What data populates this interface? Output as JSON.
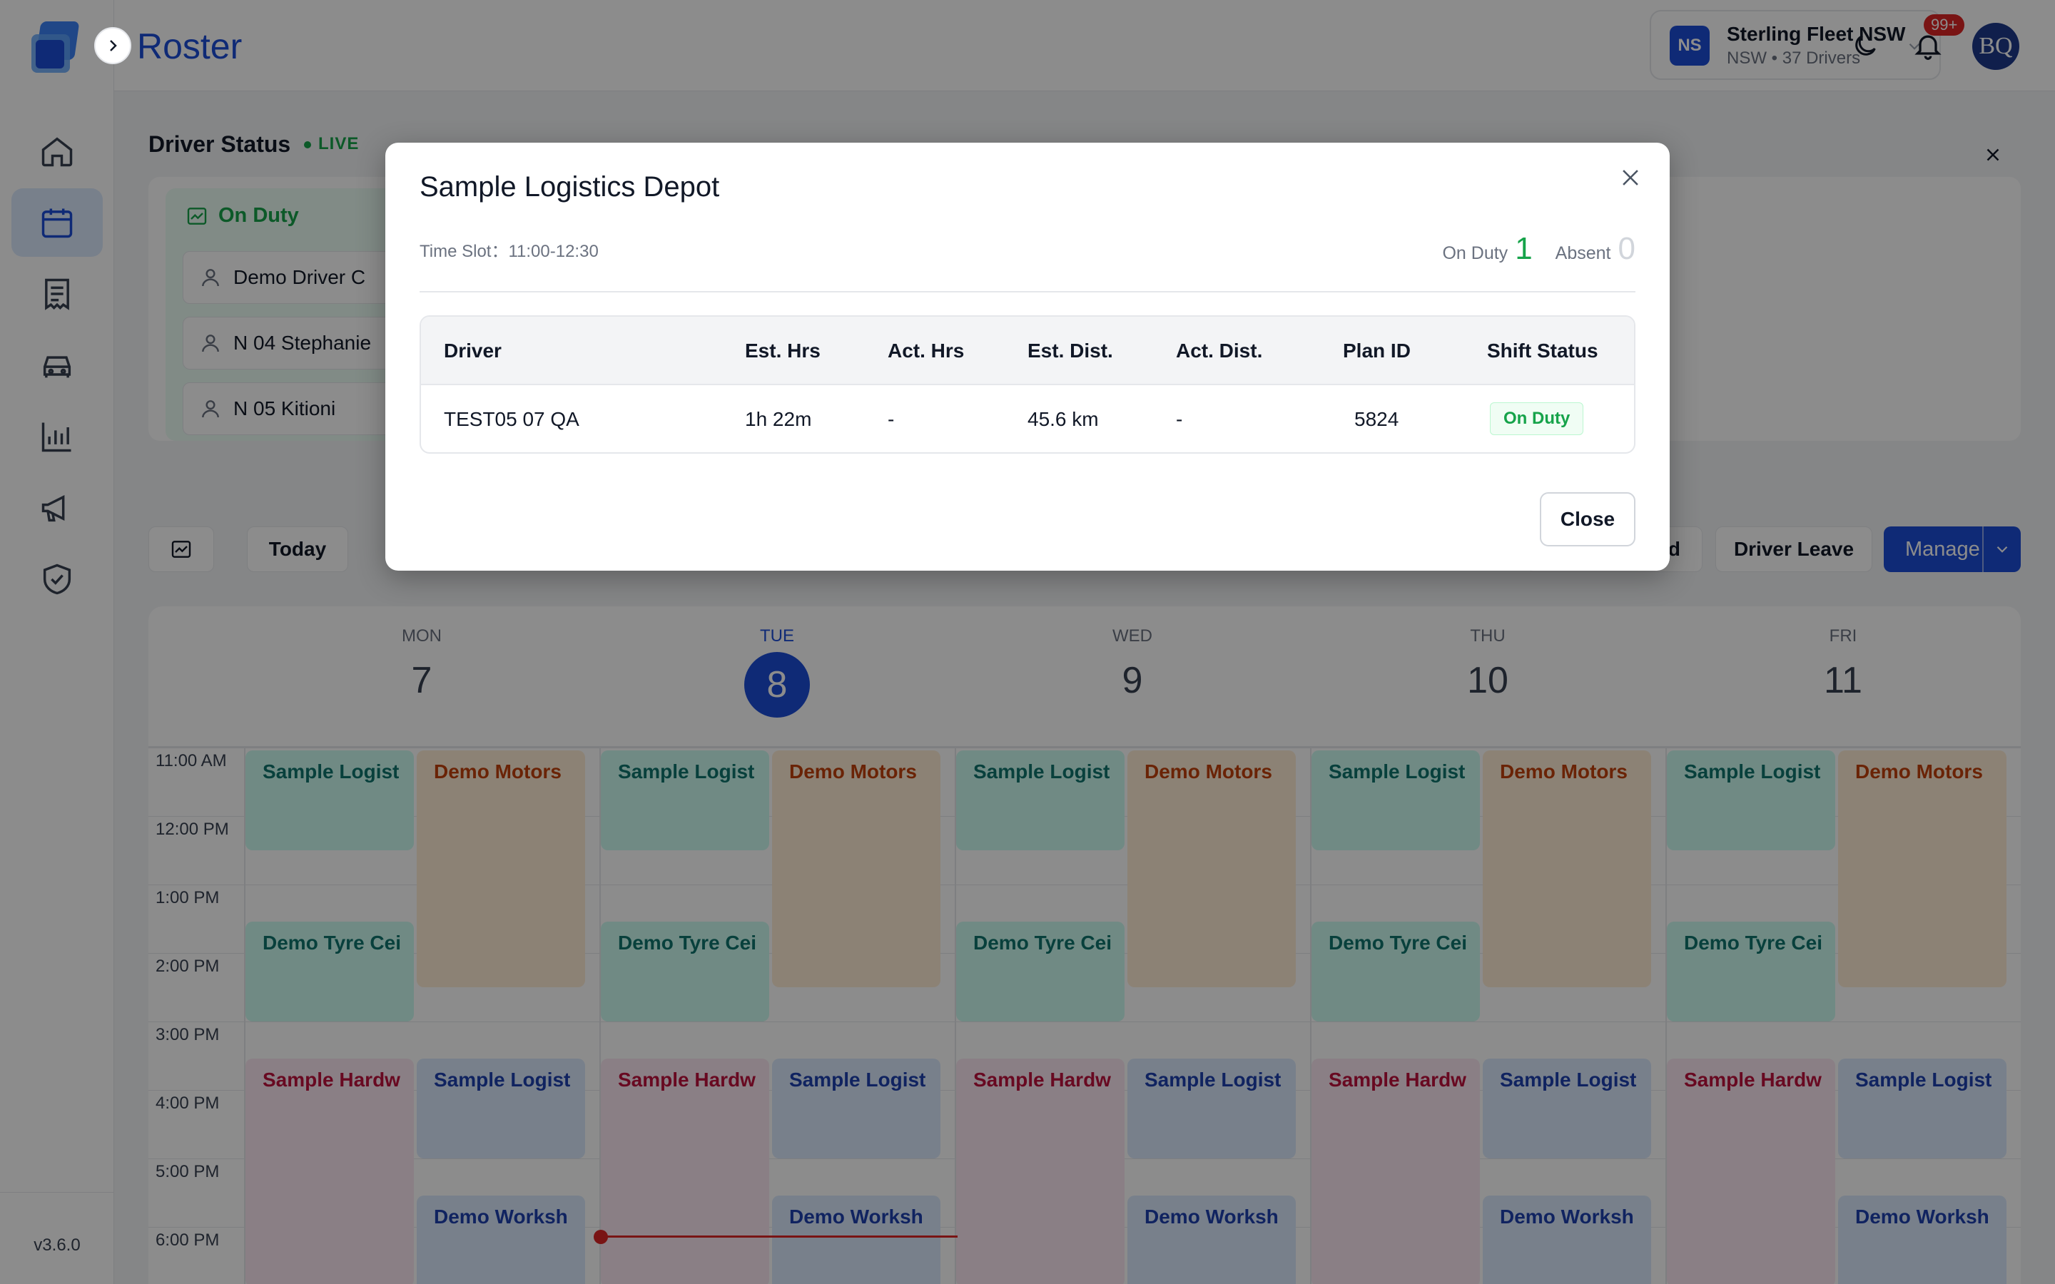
{
  "app": {
    "title": "Roster",
    "version": "v3.6.0"
  },
  "sidebar": {
    "items": [
      {
        "icon": "home-icon"
      },
      {
        "icon": "calendar-icon",
        "active": true
      },
      {
        "icon": "document-icon"
      },
      {
        "icon": "car-icon"
      },
      {
        "icon": "bar-chart-icon"
      },
      {
        "icon": "megaphone-icon"
      },
      {
        "icon": "shield-check-icon"
      }
    ]
  },
  "header": {
    "fleet_badge": "NS",
    "fleet_name": "Sterling Fleet NSW",
    "fleet_sub": "NSW • 37 Drivers",
    "notifications": "99+",
    "avatar": "BQ"
  },
  "status": {
    "title": "Driver Status",
    "live": "LIVE",
    "on_duty_label": "On Duty",
    "drivers": [
      "Demo Driver C",
      "N 04 Stephanie",
      "N 05 Kitioni"
    ]
  },
  "toolbar": {
    "today": "Today",
    "partial_label": "d",
    "driver_leave": "Driver Leave",
    "manage": "Manage"
  },
  "calendar": {
    "days": [
      {
        "dow": "MON",
        "num": "7"
      },
      {
        "dow": "TUE",
        "num": "8",
        "today": true
      },
      {
        "dow": "WED",
        "num": "9"
      },
      {
        "dow": "THU",
        "num": "10"
      },
      {
        "dow": "FRI",
        "num": "11"
      }
    ],
    "hours": [
      "11:00 AM",
      "12:00 PM",
      "1:00 PM",
      "2:00 PM",
      "3:00 PM",
      "4:00 PM",
      "5:00 PM",
      "6:00 PM"
    ],
    "events": {
      "sample_logistics": "Sample Logist",
      "demo_motors": "Demo Motors",
      "demo_tyre": "Demo Tyre Cei",
      "sample_hardware": "Sample Hardw",
      "demo_workshop": "Demo Worksh"
    }
  },
  "modal": {
    "title": "Sample Logistics Depot",
    "slot": "Time Slot：11:00-12:30",
    "on_duty_label": "On Duty",
    "on_duty_count": "1",
    "absent_label": "Absent",
    "absent_count": "0",
    "columns": [
      "Driver",
      "Est. Hrs",
      "Act. Hrs",
      "Est. Dist.",
      "Act. Dist.",
      "Plan ID",
      "Shift Status"
    ],
    "rows": [
      [
        "TEST05 07 QA",
        "1h 22m",
        "-",
        "45.6 km",
        "-",
        "5824",
        "On Duty"
      ]
    ],
    "close": "Close"
  }
}
